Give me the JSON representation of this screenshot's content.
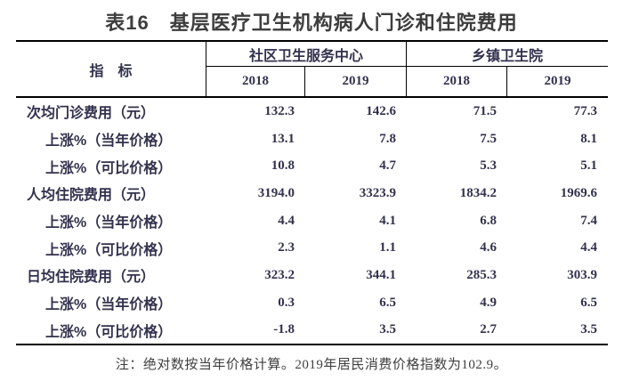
{
  "title": "表16　基层医疗卫生机构病人门诊和住院费用",
  "table": {
    "indicator_header": "指　标",
    "groups": [
      {
        "label": "社区卫生服务中心",
        "years": [
          "2018",
          "2019"
        ]
      },
      {
        "label": "乡镇卫生院",
        "years": [
          "2018",
          "2019"
        ]
      }
    ],
    "rows": [
      {
        "indicator": "次均门诊费用（元）",
        "indent": false,
        "values": [
          "132.3",
          "142.6",
          "71.5",
          "77.3"
        ]
      },
      {
        "indicator": "上涨%（当年价格）",
        "indent": true,
        "values": [
          "13.1",
          "7.8",
          "7.5",
          "8.1"
        ]
      },
      {
        "indicator": "上涨%（可比价格）",
        "indent": true,
        "values": [
          "10.8",
          "4.7",
          "5.3",
          "5.1"
        ]
      },
      {
        "indicator": "人均住院费用（元）",
        "indent": false,
        "values": [
          "3194.0",
          "3323.9",
          "1834.2",
          "1969.6"
        ]
      },
      {
        "indicator": "上涨%（当年价格）",
        "indent": true,
        "values": [
          "4.4",
          "4.1",
          "6.8",
          "7.4"
        ]
      },
      {
        "indicator": "上涨%（可比价格）",
        "indent": true,
        "values": [
          "2.3",
          "1.1",
          "4.6",
          "4.4"
        ]
      },
      {
        "indicator": "日均住院费用（元）",
        "indent": false,
        "values": [
          "323.2",
          "344.1",
          "285.3",
          "303.9"
        ]
      },
      {
        "indicator": "上涨%（当年价格）",
        "indent": true,
        "values": [
          "0.3",
          "6.5",
          "4.9",
          "6.5"
        ]
      },
      {
        "indicator": "上涨%（可比价格）",
        "indent": true,
        "values": [
          "-1.8",
          "3.5",
          "2.7",
          "3.5"
        ]
      }
    ]
  },
  "note": "注：绝对数按当年价格计算。2019年居民消费价格指数为102.9。",
  "colors": {
    "background": "#ffffff",
    "title_text": "#3d3d3d",
    "table_text": "#32324e",
    "border": "#000000"
  }
}
